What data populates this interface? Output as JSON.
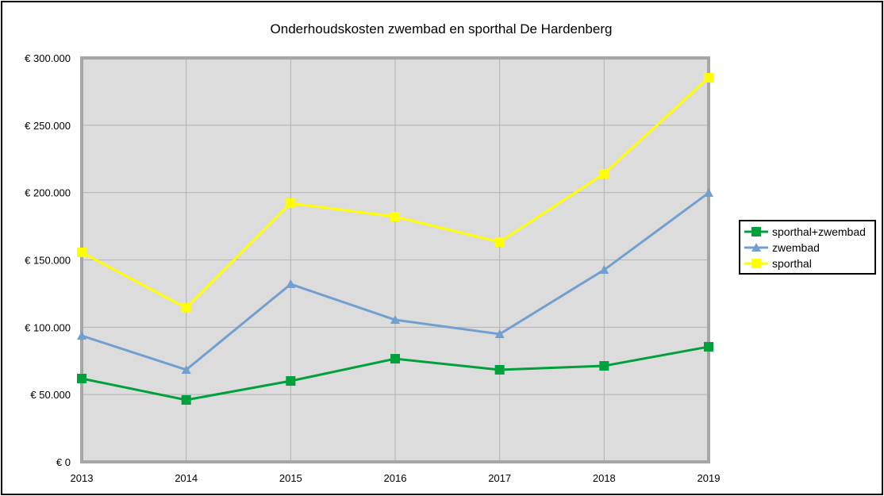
{
  "chart_data": {
    "type": "line",
    "title": "Onderhoudskosten zwembad en sporthal De Hardenberg",
    "xlabel": "",
    "ylabel": "",
    "x": [
      "2013",
      "2014",
      "2015",
      "2016",
      "2017",
      "2018",
      "2019"
    ],
    "ylim": [
      0,
      300000
    ],
    "yticks": [
      0,
      50000,
      100000,
      150000,
      200000,
      250000,
      300000
    ],
    "ytick_labels": [
      "€ 0",
      "€ 50.000",
      "€ 100.000",
      "€ 150.000",
      "€ 200.000",
      "€ 250.000",
      "€ 300.000"
    ],
    "grid": true,
    "legend_position": "right",
    "series": [
      {
        "name": "sporthal+zwembad",
        "color": "#00a03c",
        "marker": "square",
        "values": [
          61900,
          46000,
          60100,
          76600,
          68400,
          71300,
          85500
        ]
      },
      {
        "name": "zwembad",
        "color": "#729fcf",
        "marker": "triangle",
        "values": [
          93700,
          68400,
          132000,
          105500,
          94900,
          142600,
          199800
        ]
      },
      {
        "name": "sporthal",
        "color": "#ffff00",
        "marker": "square",
        "values": [
          155600,
          114300,
          192100,
          182100,
          163300,
          214000,
          285300
        ]
      }
    ]
  }
}
